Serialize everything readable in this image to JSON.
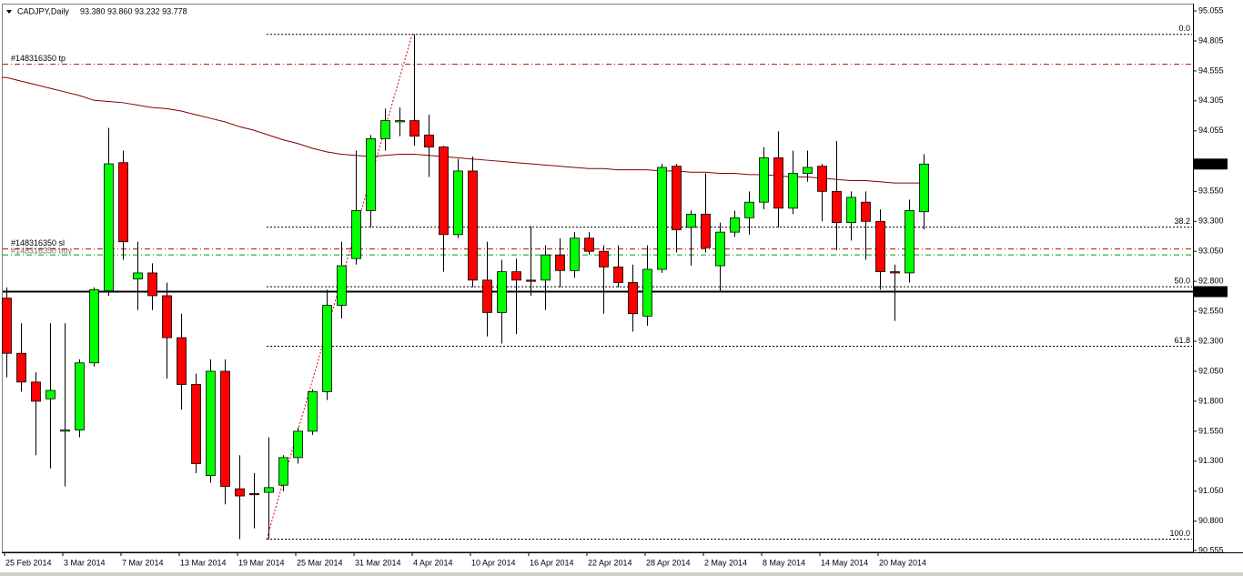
{
  "chart_data": {
    "type": "candlestick",
    "symbol": "CADJPY,Daily",
    "ohlc_header": "93.380 93.860 93.232 93.778",
    "categories": [
      "25 Feb 2014",
      null,
      null,
      null,
      "3 Mar 2014",
      null,
      null,
      null,
      "7 Mar 2014",
      null,
      null,
      null,
      "13 Mar 2014",
      null,
      null,
      null,
      "19 Mar 2014",
      null,
      null,
      null,
      "25 Mar 2014",
      null,
      null,
      null,
      "31 Mar 2014",
      null,
      null,
      null,
      "4 Apr 2014",
      null,
      null,
      null,
      "10 Apr 2014",
      null,
      null,
      null,
      "16 Apr 2014",
      null,
      null,
      null,
      "22 Apr 2014",
      null,
      null,
      null,
      "28 Apr 2014",
      null,
      null,
      null,
      "2 May 2014",
      null,
      null,
      null,
      "8 May 2014",
      null,
      null,
      null,
      "14 May 2014",
      null,
      null,
      null,
      "20 May 2014",
      null,
      null,
      null
    ],
    "open": [
      92.66,
      92.2,
      91.96,
      91.82,
      91.55,
      91.56,
      92.12,
      92.72,
      93.79,
      92.82,
      92.87,
      92.68,
      92.33,
      91.94,
      91.18,
      92.05,
      91.07,
      91.03,
      91.04,
      91.1,
      91.33,
      91.55,
      91.88,
      92.6,
      92.99,
      93.39,
      93.99,
      94.13,
      94.14,
      94.02,
      93.92,
      93.19,
      93.72,
      92.81,
      92.54,
      92.88,
      92.81,
      92.81,
      93.02,
      92.89,
      93.16,
      93.05,
      92.92,
      92.79,
      92.51,
      92.9,
      93.76,
      93.25,
      93.36,
      92.93,
      93.21,
      93.33,
      93.46,
      93.83,
      93.41,
      93.7,
      93.76,
      93.55,
      93.29,
      93.46,
      93.3,
      92.88,
      92.87,
      93.38
    ],
    "high": [
      92.75,
      92.45,
      92.04,
      92.45,
      92.45,
      92.15,
      92.75,
      94.08,
      93.89,
      93.13,
      92.95,
      92.79,
      92.53,
      92.03,
      92.15,
      92.15,
      91.35,
      91.2,
      91.5,
      91.35,
      91.58,
      91.9,
      92.73,
      93.13,
      93.89,
      94.02,
      94.24,
      94.25,
      94.86,
      94.19,
      93.93,
      93.82,
      93.84,
      93.13,
      92.98,
      92.99,
      93.26,
      93.1,
      93.16,
      93.21,
      93.21,
      93.1,
      93.1,
      92.94,
      93.1,
      93.78,
      93.78,
      93.39,
      93.7,
      93.29,
      93.39,
      93.55,
      93.92,
      94.05,
      93.89,
      93.89,
      93.78,
      93.97,
      93.55,
      93.55,
      93.4,
      92.94,
      93.48,
      93.86
    ],
    "low": [
      92.0,
      91.88,
      91.35,
      91.24,
      91.09,
      91.5,
      92.09,
      92.68,
      92.98,
      92.56,
      92.56,
      91.99,
      91.73,
      91.2,
      91.12,
      90.94,
      90.65,
      90.74,
      90.65,
      91.05,
      91.28,
      91.52,
      91.81,
      92.49,
      92.94,
      93.25,
      93.89,
      94.01,
      93.93,
      93.67,
      92.88,
      93.16,
      92.75,
      92.34,
      92.28,
      92.36,
      92.68,
      92.56,
      92.75,
      92.83,
      93.02,
      92.53,
      92.75,
      92.38,
      92.43,
      92.87,
      93.04,
      92.93,
      93.04,
      92.72,
      93.17,
      93.19,
      93.4,
      93.25,
      93.36,
      93.63,
      93.3,
      93.06,
      93.14,
      92.98,
      92.73,
      92.47,
      92.79,
      93.232
    ],
    "close": [
      92.2,
      91.96,
      91.8,
      91.89,
      91.56,
      92.12,
      92.73,
      93.78,
      93.13,
      92.87,
      92.68,
      92.33,
      91.94,
      91.28,
      92.05,
      91.09,
      91.01,
      91.02,
      91.08,
      91.33,
      91.55,
      91.88,
      92.6,
      92.93,
      93.39,
      93.99,
      94.14,
      94.14,
      94.01,
      93.92,
      93.19,
      93.72,
      92.81,
      92.54,
      92.88,
      92.81,
      92.8,
      93.02,
      92.89,
      93.16,
      93.05,
      92.92,
      92.79,
      92.53,
      92.9,
      93.75,
      93.23,
      93.36,
      93.08,
      93.21,
      93.33,
      93.46,
      93.83,
      93.41,
      93.7,
      93.75,
      93.55,
      93.29,
      93.5,
      93.3,
      92.88,
      92.87,
      93.39,
      93.778
    ],
    "moving_average": [
      94.5,
      94.47,
      94.44,
      94.41,
      94.38,
      94.35,
      94.31,
      94.3,
      94.29,
      94.27,
      94.25,
      94.24,
      94.22,
      94.19,
      94.16,
      94.13,
      94.09,
      94.06,
      94.02,
      93.98,
      93.95,
      93.91,
      93.88,
      93.86,
      93.85,
      93.84,
      93.85,
      93.86,
      93.86,
      93.85,
      93.84,
      93.83,
      93.82,
      93.81,
      93.8,
      93.79,
      93.78,
      93.77,
      93.76,
      93.75,
      93.74,
      93.74,
      93.73,
      93.73,
      93.73,
      93.72,
      93.72,
      93.71,
      93.71,
      93.7,
      93.7,
      93.69,
      93.69,
      93.68,
      93.67,
      93.67,
      93.66,
      93.65,
      93.64,
      93.64,
      93.63,
      93.62,
      93.62,
      93.62
    ],
    "up_color": "#00ff00",
    "down_color": "#ff0000",
    "ma_color": "#800000",
    "ylim": [
      90.555,
      95.055
    ],
    "yticks": [
      95.055,
      94.805,
      94.555,
      94.305,
      94.055,
      {
        "value": 93.55,
        "label": "93.550"
      },
      {
        "value": 93.3,
        "label": "93.300"
      },
      {
        "value": 93.05,
        "label": "93.050"
      },
      {
        "value": 92.8,
        "label": "92.800"
      },
      {
        "value": 92.55,
        "label": "92.550"
      },
      {
        "value": 92.3,
        "label": "92.300"
      },
      {
        "value": 92.05,
        "label": "92.050"
      },
      {
        "value": 91.8,
        "label": "91.800"
      },
      {
        "value": 91.55,
        "label": "91.550"
      },
      {
        "value": 91.3,
        "label": "91.300"
      },
      {
        "value": 91.05,
        "label": "91.050"
      },
      {
        "value": 90.8,
        "label": "90.800"
      },
      90.555
    ],
    "fib": {
      "high": 94.86,
      "low": 90.65,
      "levels": [
        {
          "value": 0,
          "label": "0.0"
        },
        {
          "value": 38.2,
          "label": "38.2"
        },
        {
          "value": 50,
          "label": "50.0"
        },
        {
          "value": 61.8,
          "label": "61.8"
        },
        {
          "value": 100,
          "label": "100.0"
        }
      ]
    },
    "orders": [
      {
        "label": "#148316350 tp",
        "price": 94.61,
        "color": "#c00000"
      },
      {
        "label": "#148316350 sl",
        "price": 93.07,
        "color": "#c00000"
      },
      {
        "label": "#148316350 buy",
        "price": 93.02,
        "color": "#00a000"
      }
    ],
    "hline": {
      "price": 92.714
    }
  }
}
